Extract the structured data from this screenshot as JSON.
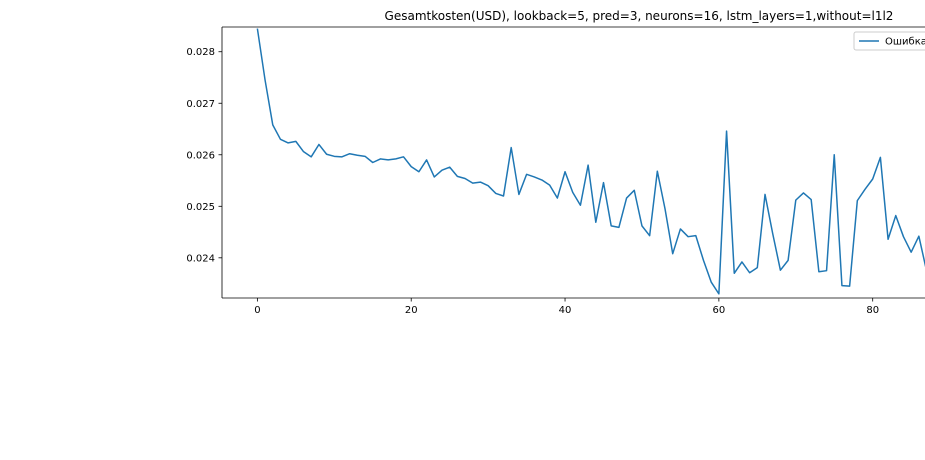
{
  "chart_data": {
    "type": "line",
    "title": "Gesamtkosten(USD), lookback=5, pred=3, neurons=16, lstm_layers=1,without=l1l2",
    "xlabel": "",
    "ylabel": "",
    "xlim": [
      -4.6,
      86.8
    ],
    "ylim": [
      0.02322,
      0.02848
    ],
    "xticks": [
      0,
      20,
      40,
      60,
      80
    ],
    "yticks": [
      0.024,
      0.025,
      0.026,
      0.027,
      0.028
    ],
    "ytick_labels": [
      "0.024",
      "0.025",
      "0.026",
      "0.027",
      "0.028"
    ],
    "grid": false,
    "legend": "top-right",
    "series": [
      {
        "name": "Ошибка",
        "color": "#1f77b4",
        "x": [
          0,
          1,
          2,
          3,
          4,
          5,
          6,
          7,
          8,
          9,
          10,
          11,
          12,
          13,
          14,
          15,
          16,
          17,
          18,
          19,
          20,
          21,
          22,
          23,
          24,
          25,
          26,
          27,
          28,
          29,
          30,
          31,
          32,
          33,
          34,
          35,
          36,
          37,
          38,
          39,
          40,
          41,
          42,
          43,
          44,
          45,
          46,
          47,
          48,
          49,
          50,
          51,
          52,
          53,
          54,
          55,
          56,
          57,
          58,
          59,
          60,
          61,
          62,
          63,
          64,
          65,
          66,
          67,
          68,
          69,
          70,
          71,
          72,
          73,
          74,
          75,
          76,
          77,
          78,
          79,
          80,
          81,
          82,
          83,
          84,
          85,
          86,
          87
        ],
        "values": [
          0.02845,
          0.02745,
          0.02658,
          0.0263,
          0.02623,
          0.02626,
          0.02606,
          0.02596,
          0.0262,
          0.02601,
          0.02597,
          0.02596,
          0.02602,
          0.02599,
          0.02597,
          0.02585,
          0.02592,
          0.0259,
          0.02592,
          0.02596,
          0.02577,
          0.02567,
          0.0259,
          0.02557,
          0.0257,
          0.02576,
          0.02558,
          0.02554,
          0.02545,
          0.02547,
          0.0254,
          0.02525,
          0.0252,
          0.02614,
          0.02523,
          0.02562,
          0.02557,
          0.02551,
          0.02541,
          0.02516,
          0.02567,
          0.02527,
          0.02502,
          0.0258,
          0.02469,
          0.02546,
          0.02462,
          0.02459,
          0.02516,
          0.02531,
          0.02462,
          0.02443,
          0.02568,
          0.02495,
          0.02408,
          0.02456,
          0.02441,
          0.02443,
          0.02395,
          0.02353,
          0.0233,
          0.02646,
          0.0237,
          0.02392,
          0.02371,
          0.02381,
          0.02523,
          0.02447,
          0.02376,
          0.02395,
          0.02512,
          0.02526,
          0.02513,
          0.02373,
          0.02375,
          0.026,
          0.02346,
          0.02345,
          0.02511,
          0.02533,
          0.02553,
          0.02595,
          0.02436,
          0.02482,
          0.02441,
          0.02411,
          0.02442,
          0.02375
        ]
      }
    ]
  }
}
